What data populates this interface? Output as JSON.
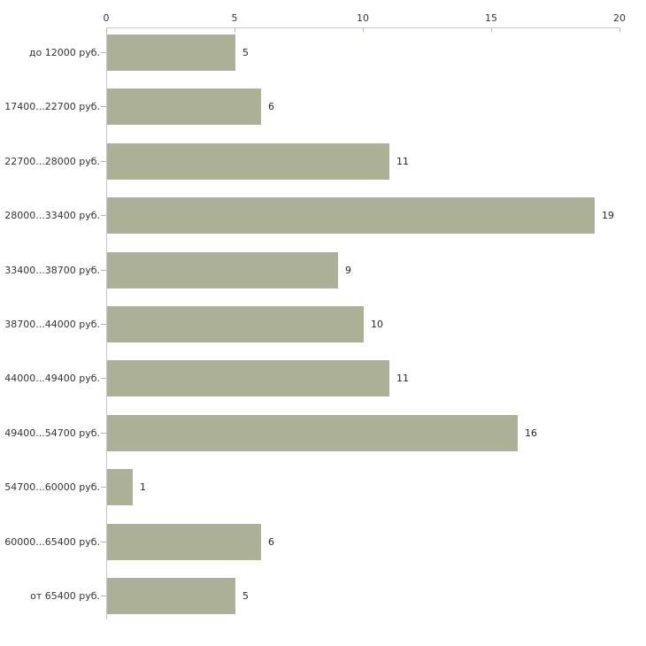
{
  "chart_data": {
    "type": "bar",
    "orientation": "horizontal",
    "title": "",
    "xlabel": "",
    "ylabel": "",
    "axis_position": "top",
    "grid": false,
    "legend": false,
    "xlim": [
      0,
      20
    ],
    "x_ticks": [
      "0",
      "5",
      "10",
      "15",
      "20"
    ],
    "categories": [
      "до 12000 руб.",
      "17400...22700 руб.",
      "22700...28000 руб.",
      "28000...33400 руб.",
      "33400...38700 руб.",
      "38700...44000 руб.",
      "44000...49400 руб.",
      "49400...54700 руб.",
      "54700...60000 руб.",
      "60000...65400 руб.",
      "от 65400 руб."
    ],
    "values": [
      5,
      6,
      11,
      19,
      9,
      10,
      11,
      16,
      1,
      6,
      5
    ],
    "colors": {
      "bar": "#abb096",
      "axis_line": "#c7c7c7",
      "tick_mark": "#b6ba9e",
      "text": "#333333",
      "background": "#ffffff"
    }
  }
}
